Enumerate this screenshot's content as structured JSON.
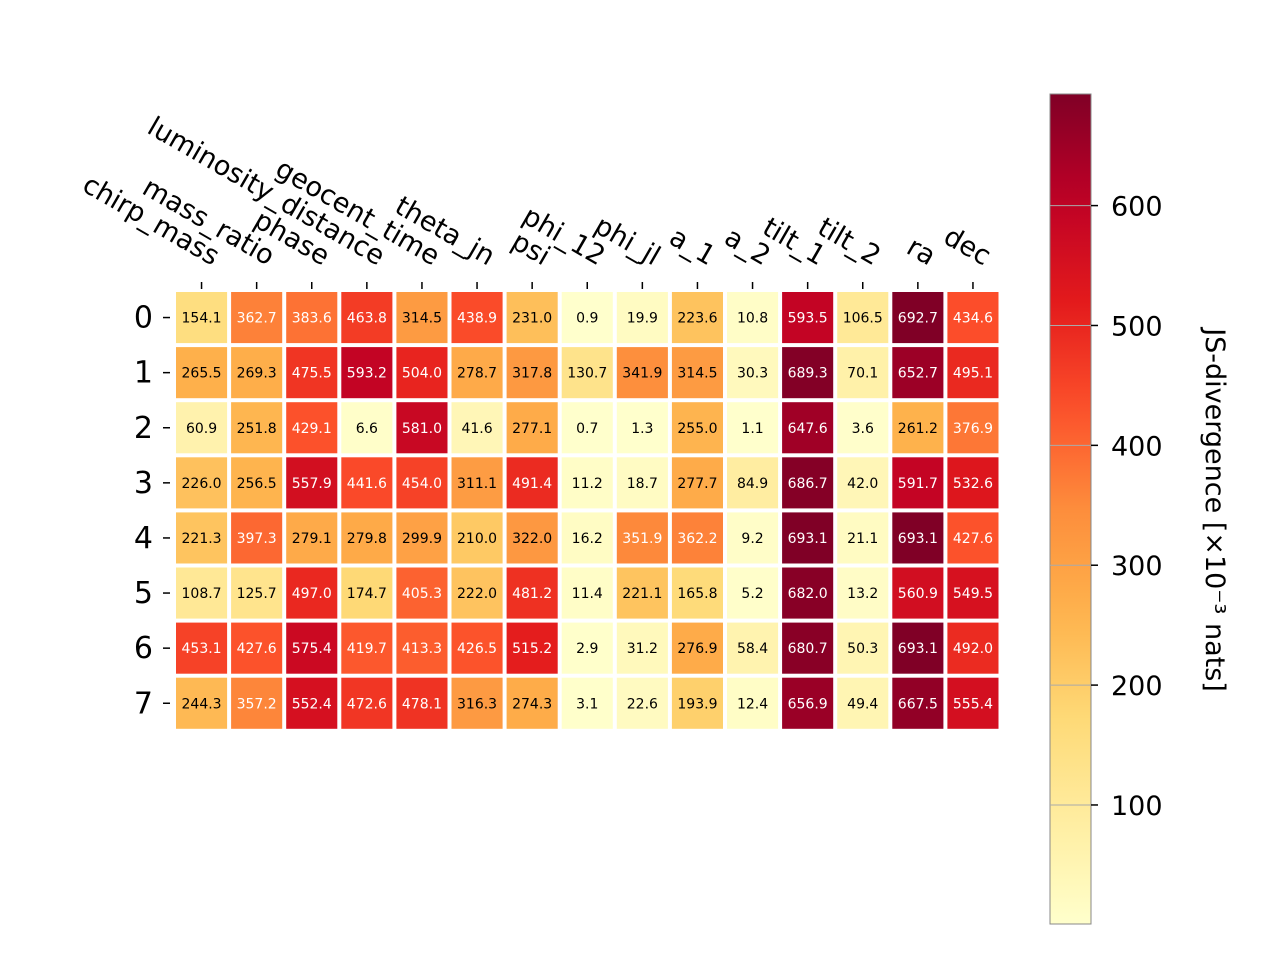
{
  "chart_data": {
    "type": "heatmap",
    "colorbar_label": "JS-divergence [×10⁻³ nats]",
    "colorbar_ticks": [
      100,
      200,
      300,
      400,
      500,
      600
    ],
    "colorbar_range": [
      0.7,
      693.1
    ],
    "colormap": "YlOrRd",
    "columns": [
      "chirp_mass",
      "mass_ratio",
      "phase",
      "luminosity_distance",
      "geocent_time",
      "theta_jn",
      "psi",
      "phi_12",
      "phi_jl",
      "a_1",
      "a_2",
      "tilt_1",
      "tilt_2",
      "ra",
      "dec"
    ],
    "rows": [
      "0",
      "1",
      "2",
      "3",
      "4",
      "5",
      "6",
      "7"
    ],
    "values": [
      [
        154.1,
        362.7,
        383.6,
        463.8,
        314.5,
        438.9,
        231.0,
        0.9,
        19.9,
        223.6,
        10.8,
        593.5,
        106.5,
        692.7,
        434.6
      ],
      [
        265.5,
        269.3,
        475.5,
        593.2,
        504.0,
        278.7,
        317.8,
        130.7,
        341.9,
        314.5,
        30.3,
        689.3,
        70.1,
        652.7,
        495.1
      ],
      [
        60.9,
        251.8,
        429.1,
        6.6,
        581.0,
        41.6,
        277.1,
        0.7,
        1.3,
        255.0,
        1.1,
        647.6,
        3.6,
        261.2,
        376.9
      ],
      [
        226.0,
        256.5,
        557.9,
        441.6,
        454.0,
        311.1,
        491.4,
        11.2,
        18.7,
        277.7,
        84.9,
        686.7,
        42.0,
        591.7,
        532.6
      ],
      [
        221.3,
        397.3,
        279.1,
        279.8,
        299.9,
        210.0,
        322.0,
        16.2,
        351.9,
        362.2,
        9.2,
        693.1,
        21.1,
        693.1,
        427.6
      ],
      [
        108.7,
        125.7,
        497.0,
        174.7,
        405.3,
        222.0,
        481.2,
        11.4,
        221.1,
        165.8,
        5.2,
        682.0,
        13.2,
        560.9,
        549.5
      ],
      [
        453.1,
        427.6,
        575.4,
        419.7,
        413.3,
        426.5,
        515.2,
        2.9,
        31.2,
        276.9,
        58.4,
        680.7,
        50.3,
        693.1,
        492.0
      ],
      [
        244.3,
        357.2,
        552.4,
        472.6,
        478.1,
        316.3,
        274.3,
        3.1,
        22.6,
        193.9,
        12.4,
        656.9,
        49.4,
        667.5,
        555.4
      ]
    ]
  }
}
